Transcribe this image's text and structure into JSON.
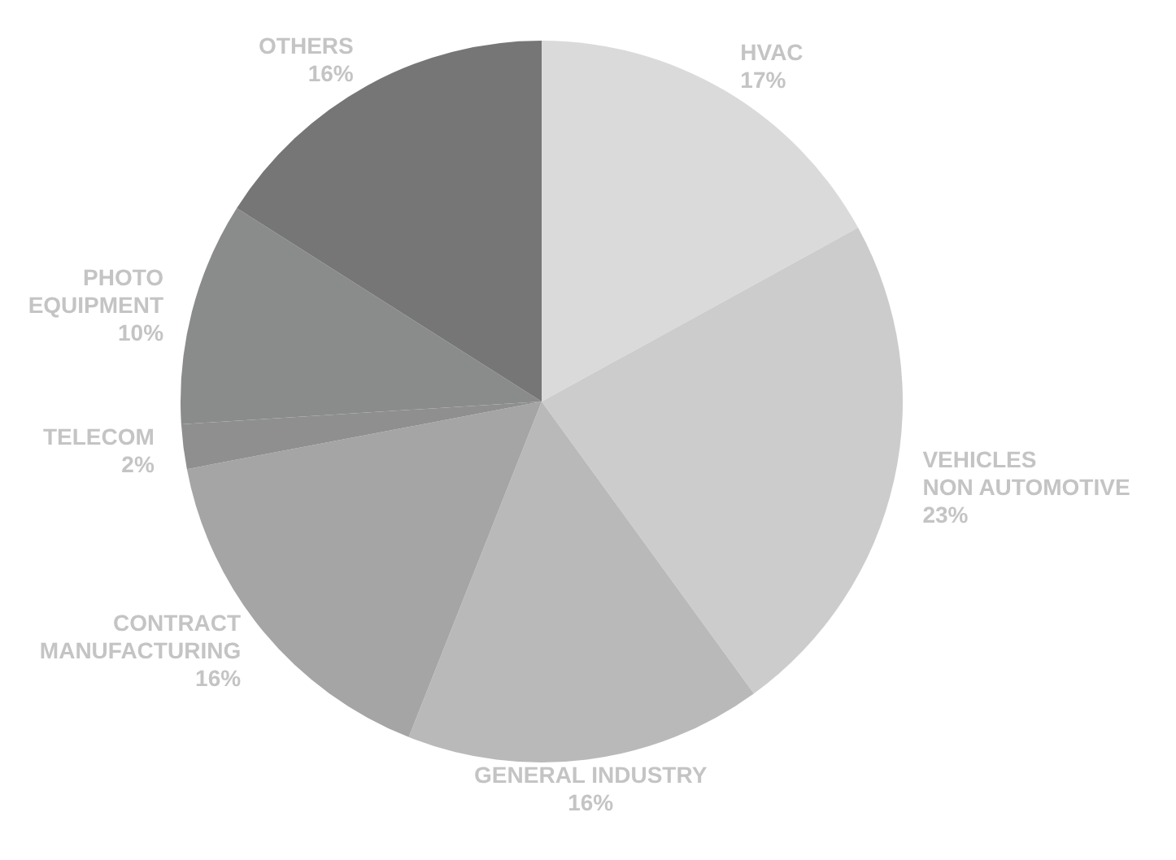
{
  "chart_data": {
    "type": "pie",
    "categories": [
      "HVAC",
      "VEHICLES\nNON AUTOMOTIVE",
      "GENERAL INDUSTRY",
      "CONTRACT\nMANUFACTURING",
      "TELECOM",
      "PHOTO\nEQUIPMENT",
      "OTHERS"
    ],
    "values": [
      17,
      23,
      16,
      16,
      2,
      10,
      16
    ],
    "value_labels": [
      "17%",
      "23%",
      "16%",
      "16%",
      "2%",
      "10%",
      "16%"
    ],
    "colors": [
      "#dadada",
      "#cccccc",
      "#b9b9b9",
      "#a5a5a5",
      "#8f8f8f",
      "#8a8c8b",
      "#767676"
    ]
  }
}
